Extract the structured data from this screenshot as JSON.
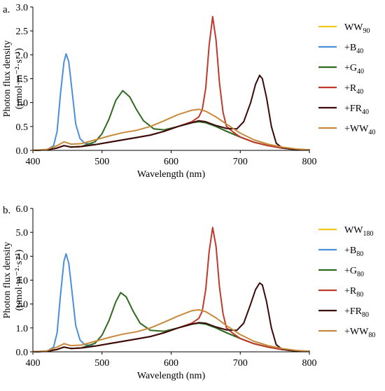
{
  "chart_data": [
    {
      "type": "line",
      "panel_label": "a.",
      "xlabel": "Wavelength (nm)",
      "ylabel": [
        "Photon flux density",
        "(μmol·m⁻²·s⁻¹)"
      ],
      "xlim": [
        400,
        800
      ],
      "ylim": [
        0,
        3.0
      ],
      "xticks": [
        "400",
        "500",
        "600",
        "700",
        "800"
      ],
      "yticks": [
        "0.0",
        "0.5",
        "1.0",
        "1.5",
        "2.0",
        "2.5",
        "3.0"
      ],
      "legend_position": "right",
      "series": [
        {
          "name": "WW",
          "sub": "90",
          "color": "#f2c71b",
          "x": [
            400,
            420,
            435,
            445,
            455,
            470,
            490,
            510,
            530,
            550,
            570,
            590,
            610,
            630,
            640,
            650,
            665,
            680,
            700,
            720,
            740,
            760,
            780,
            800
          ],
          "y": [
            0,
            0.01,
            0.05,
            0.1,
            0.07,
            0.08,
            0.12,
            0.17,
            0.22,
            0.27,
            0.32,
            0.4,
            0.5,
            0.58,
            0.6,
            0.58,
            0.5,
            0.4,
            0.28,
            0.17,
            0.1,
            0.05,
            0.02,
            0.01
          ]
        },
        {
          "name": "+B",
          "sub": "40",
          "color": "#4a90d9",
          "x": [
            400,
            420,
            430,
            435,
            440,
            445,
            448,
            452,
            457,
            462,
            468,
            475,
            490,
            510,
            530,
            550,
            570,
            590,
            610,
            630,
            640,
            650,
            665,
            680,
            700,
            720,
            740,
            760,
            780,
            800
          ],
          "y": [
            0,
            0.01,
            0.1,
            0.4,
            1.2,
            1.85,
            2.02,
            1.85,
            1.2,
            0.55,
            0.25,
            0.15,
            0.12,
            0.17,
            0.22,
            0.27,
            0.32,
            0.4,
            0.5,
            0.58,
            0.6,
            0.58,
            0.5,
            0.4,
            0.28,
            0.17,
            0.1,
            0.05,
            0.02,
            0.01
          ]
        },
        {
          "name": "+G",
          "sub": "40",
          "color": "#2e6b1e",
          "x": [
            400,
            420,
            435,
            445,
            455,
            470,
            490,
            500,
            510,
            520,
            530,
            540,
            550,
            560,
            575,
            590,
            610,
            630,
            640,
            650,
            665,
            680,
            700,
            720,
            740,
            760,
            780,
            800
          ],
          "y": [
            0,
            0.01,
            0.05,
            0.1,
            0.07,
            0.08,
            0.18,
            0.35,
            0.65,
            1.05,
            1.25,
            1.12,
            0.85,
            0.62,
            0.45,
            0.43,
            0.5,
            0.58,
            0.6,
            0.58,
            0.5,
            0.4,
            0.28,
            0.17,
            0.1,
            0.05,
            0.02,
            0.01
          ]
        },
        {
          "name": "+R",
          "sub": "40",
          "color": "#c0392b",
          "x": [
            400,
            420,
            435,
            445,
            455,
            470,
            490,
            510,
            530,
            550,
            570,
            590,
            610,
            630,
            640,
            645,
            650,
            655,
            660,
            665,
            670,
            675,
            680,
            690,
            700,
            720,
            740,
            760,
            780,
            800
          ],
          "y": [
            0,
            0.01,
            0.05,
            0.1,
            0.07,
            0.08,
            0.12,
            0.17,
            0.22,
            0.27,
            0.32,
            0.4,
            0.5,
            0.6,
            0.7,
            0.85,
            1.3,
            2.2,
            2.8,
            2.3,
            1.4,
            0.8,
            0.5,
            0.38,
            0.28,
            0.17,
            0.1,
            0.05,
            0.02,
            0.01
          ]
        },
        {
          "name": "+FR",
          "sub": "40",
          "color": "#3b0a0a",
          "x": [
            400,
            420,
            435,
            445,
            455,
            470,
            490,
            510,
            530,
            550,
            570,
            590,
            610,
            630,
            640,
            650,
            665,
            680,
            695,
            705,
            715,
            722,
            728,
            732,
            738,
            745,
            752,
            760,
            770,
            780,
            800
          ],
          "y": [
            0,
            0.01,
            0.05,
            0.1,
            0.07,
            0.08,
            0.12,
            0.17,
            0.22,
            0.27,
            0.32,
            0.4,
            0.5,
            0.58,
            0.62,
            0.6,
            0.52,
            0.46,
            0.45,
            0.6,
            1.0,
            1.38,
            1.57,
            1.5,
            1.1,
            0.5,
            0.15,
            0.06,
            0.03,
            0.02,
            0.01
          ]
        },
        {
          "name": "+WW",
          "sub": "40",
          "color": "#c8893a",
          "x": [
            400,
            420,
            435,
            445,
            455,
            470,
            490,
            510,
            530,
            550,
            570,
            590,
            610,
            630,
            640,
            650,
            665,
            680,
            700,
            720,
            740,
            760,
            780,
            800
          ],
          "y": [
            0,
            0.02,
            0.1,
            0.18,
            0.13,
            0.14,
            0.22,
            0.3,
            0.37,
            0.42,
            0.5,
            0.62,
            0.75,
            0.84,
            0.86,
            0.82,
            0.7,
            0.55,
            0.36,
            0.22,
            0.13,
            0.07,
            0.03,
            0.01
          ]
        }
      ]
    },
    {
      "type": "line",
      "panel_label": "b.",
      "xlabel": "Wavelength (nm)",
      "ylabel": [
        "Photon flux density",
        "(μmol·m⁻²·s⁻¹)"
      ],
      "xlim": [
        400,
        800
      ],
      "ylim": [
        0,
        6.0
      ],
      "xticks": [
        "400",
        "500",
        "600",
        "700",
        "800"
      ],
      "yticks": [
        "0.0",
        "1.0",
        "2.0",
        "3.0",
        "4.0",
        "5.0",
        "6.0"
      ],
      "legend_position": "right",
      "series": [
        {
          "name": "WW",
          "sub": "180",
          "color": "#f2c71b",
          "x": [
            400,
            420,
            435,
            445,
            455,
            470,
            490,
            510,
            530,
            550,
            570,
            590,
            610,
            630,
            640,
            650,
            665,
            680,
            700,
            720,
            740,
            760,
            780,
            800
          ],
          "y": [
            0,
            0.02,
            0.1,
            0.2,
            0.14,
            0.16,
            0.24,
            0.34,
            0.44,
            0.54,
            0.64,
            0.8,
            1.0,
            1.16,
            1.2,
            1.16,
            1.0,
            0.8,
            0.56,
            0.34,
            0.2,
            0.1,
            0.04,
            0.02
          ]
        },
        {
          "name": "+B",
          "sub": "80",
          "color": "#4a90d9",
          "x": [
            400,
            420,
            430,
            435,
            440,
            445,
            448,
            452,
            457,
            462,
            468,
            475,
            490,
            510,
            530,
            550,
            570,
            590,
            610,
            630,
            640,
            650,
            665,
            680,
            700,
            720,
            740,
            760,
            780,
            800
          ],
          "y": [
            0,
            0.02,
            0.2,
            0.8,
            2.4,
            3.8,
            4.1,
            3.7,
            2.4,
            1.1,
            0.5,
            0.3,
            0.24,
            0.34,
            0.44,
            0.54,
            0.64,
            0.8,
            1.0,
            1.16,
            1.2,
            1.16,
            1.0,
            0.8,
            0.56,
            0.34,
            0.2,
            0.1,
            0.04,
            0.02
          ]
        },
        {
          "name": "+G",
          "sub": "80",
          "color": "#2e6b1e",
          "x": [
            400,
            420,
            435,
            445,
            455,
            470,
            490,
            500,
            510,
            520,
            527,
            535,
            545,
            555,
            570,
            590,
            610,
            630,
            640,
            650,
            665,
            680,
            700,
            720,
            740,
            760,
            780,
            800
          ],
          "y": [
            0,
            0.02,
            0.1,
            0.2,
            0.14,
            0.16,
            0.36,
            0.7,
            1.3,
            2.1,
            2.48,
            2.3,
            1.7,
            1.2,
            0.9,
            0.86,
            1.0,
            1.16,
            1.2,
            1.16,
            1.0,
            0.8,
            0.56,
            0.34,
            0.2,
            0.1,
            0.04,
            0.02
          ]
        },
        {
          "name": "+R",
          "sub": "80",
          "color": "#c0392b",
          "x": [
            400,
            420,
            435,
            445,
            455,
            470,
            490,
            510,
            530,
            550,
            570,
            590,
            610,
            630,
            640,
            645,
            650,
            655,
            660,
            665,
            670,
            675,
            680,
            690,
            700,
            720,
            740,
            760,
            780,
            800
          ],
          "y": [
            0,
            0.02,
            0.1,
            0.2,
            0.14,
            0.16,
            0.24,
            0.34,
            0.44,
            0.54,
            0.64,
            0.8,
            1.0,
            1.2,
            1.4,
            1.7,
            2.6,
            4.2,
            5.2,
            4.4,
            2.7,
            1.6,
            1.0,
            0.76,
            0.56,
            0.34,
            0.2,
            0.1,
            0.04,
            0.02
          ]
        },
        {
          "name": "+FR",
          "sub": "80",
          "color": "#3b0a0a",
          "x": [
            400,
            420,
            435,
            445,
            455,
            470,
            490,
            510,
            530,
            550,
            570,
            590,
            610,
            630,
            640,
            650,
            665,
            680,
            695,
            705,
            715,
            722,
            728,
            732,
            738,
            745,
            752,
            760,
            770,
            780,
            800
          ],
          "y": [
            0,
            0.02,
            0.1,
            0.2,
            0.14,
            0.16,
            0.24,
            0.34,
            0.44,
            0.54,
            0.64,
            0.8,
            1.0,
            1.16,
            1.22,
            1.2,
            1.04,
            0.92,
            0.9,
            1.2,
            2.0,
            2.6,
            2.88,
            2.8,
            2.1,
            1.0,
            0.3,
            0.12,
            0.06,
            0.04,
            0.02
          ]
        },
        {
          "name": "+WW",
          "sub": "80",
          "color": "#c8893a",
          "x": [
            400,
            420,
            435,
            445,
            455,
            470,
            490,
            510,
            530,
            550,
            570,
            590,
            610,
            630,
            640,
            650,
            665,
            680,
            700,
            720,
            740,
            760,
            780,
            800
          ],
          "y": [
            0,
            0.04,
            0.2,
            0.34,
            0.26,
            0.28,
            0.44,
            0.6,
            0.74,
            0.84,
            1.0,
            1.24,
            1.5,
            1.72,
            1.76,
            1.68,
            1.42,
            1.1,
            0.72,
            0.44,
            0.26,
            0.14,
            0.06,
            0.02
          ]
        }
      ]
    }
  ]
}
